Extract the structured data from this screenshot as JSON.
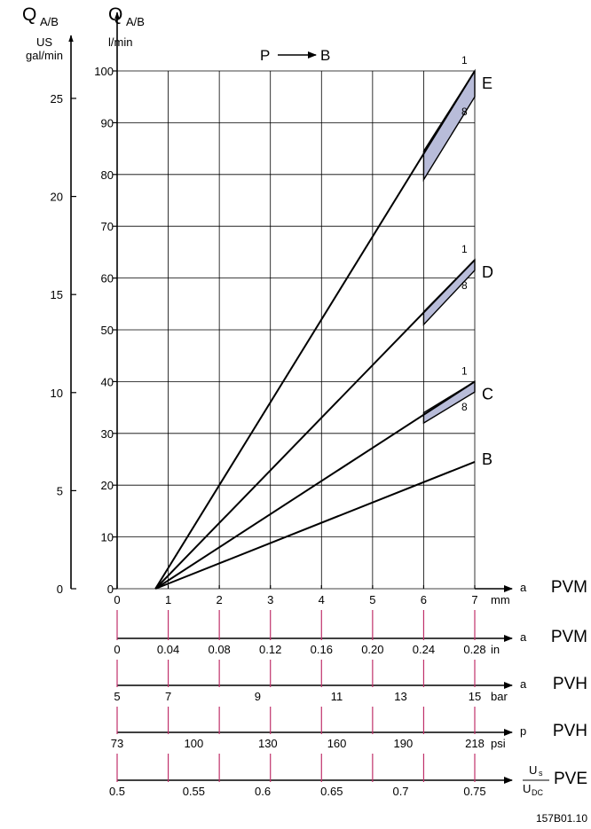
{
  "chart_data": {
    "type": "line",
    "left_axes": {
      "us": {
        "title_main": "Q",
        "title_sub": "A/B",
        "unit_line1": "US",
        "unit_line2": "gal/min",
        "range": [
          0,
          26.4
        ],
        "ticks": [
          "0",
          "5",
          "10",
          "15",
          "20",
          "25"
        ]
      },
      "lmin": {
        "title_main": "Q",
        "title_sub": "A/B",
        "unit": "l/min",
        "range": [
          0,
          100
        ],
        "ticks": [
          "0",
          "10",
          "20",
          "30",
          "40",
          "50",
          "60",
          "70",
          "80",
          "90",
          "100"
        ]
      }
    },
    "flow_label": {
      "from": "P",
      "to": "B"
    },
    "x_range": [
      0,
      7
    ],
    "series": [
      {
        "name": "B",
        "x": [
          0.75,
          7
        ],
        "y": [
          0,
          24.5
        ]
      },
      {
        "name": "C",
        "x": [
          0.75,
          7
        ],
        "y": [
          0,
          40
        ],
        "band": {
          "x": [
            6,
            7
          ],
          "upper": [
            34,
            40
          ],
          "lower": [
            32,
            38
          ]
        },
        "top_label": "1",
        "bottom_label": "8"
      },
      {
        "name": "D",
        "x": [
          0.75,
          7
        ],
        "y": [
          0,
          63.5
        ],
        "band": {
          "x": [
            6,
            7
          ],
          "upper": [
            53.5,
            63.5
          ],
          "lower": [
            51,
            61.5
          ]
        },
        "top_label": "1",
        "bottom_label": "8"
      },
      {
        "name": "E",
        "x": [
          0.75,
          7
        ],
        "y": [
          0,
          100
        ],
        "band": {
          "x": [
            6,
            7
          ],
          "upper": [
            84.5,
            100
          ],
          "lower": [
            79,
            95
          ]
        },
        "top_label": "1",
        "bottom_label": "8"
      }
    ],
    "bottom_scales": [
      {
        "label": "a",
        "device": "PVM",
        "unit": "mm",
        "ticks": [
          "0",
          "1",
          "2",
          "3",
          "4",
          "5",
          "6",
          "7"
        ]
      },
      {
        "label": "a",
        "device": "PVM",
        "unit": "in",
        "ticks": [
          "0",
          "0.04",
          "0.08",
          "0.12",
          "0.16",
          "0.20",
          "0.24",
          "0.28"
        ]
      },
      {
        "label": "a",
        "device": "PVH",
        "unit": "bar",
        "ticks": [
          "5",
          "7",
          "9",
          "11",
          "13",
          "15"
        ]
      },
      {
        "label": "p",
        "device": "PVH",
        "unit": "psi",
        "ticks": [
          "73",
          "100",
          "130",
          "160",
          "190",
          "218"
        ]
      },
      {
        "frac_num_main": "U",
        "frac_num_sub": "s",
        "frac_den_main": "U",
        "frac_den_sub": "DC",
        "device": "PVE",
        "ticks": [
          "0.5",
          "0.55",
          "0.6",
          "0.65",
          "0.7",
          "0.75"
        ]
      }
    ],
    "figure_code": "157B01.10",
    "colors": {
      "band_fill": "#b8bcd9",
      "tick_accent": "#c0306a",
      "lines": "#000000"
    }
  }
}
